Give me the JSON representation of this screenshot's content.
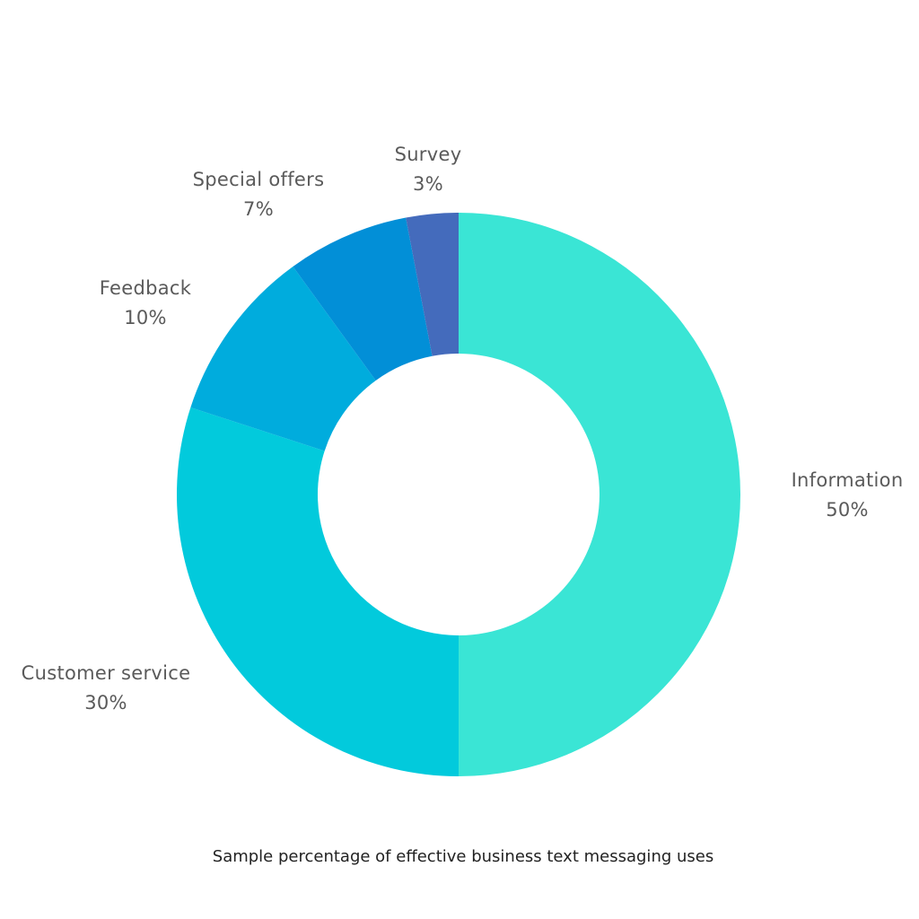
{
  "chart_data": {
    "type": "pie",
    "variant": "donut",
    "title": "Sample percentage of effective  business text messaging uses",
    "categories": [
      "Information",
      "Customer service",
      "Feedback",
      "Special offers",
      "Survey"
    ],
    "values": [
      50,
      30,
      10,
      7,
      3
    ],
    "value_labels": [
      "50%",
      "30%",
      "10%",
      "7%",
      "3%"
    ],
    "colors": [
      "#3ae5d5",
      "#02cadc",
      "#00acdd",
      "#028fd7",
      "#446bbc"
    ],
    "legend": "none (direct labels)",
    "start_angle": "12 o'clock, clockwise"
  },
  "labels": [
    {
      "name": "Information",
      "pct": "50%"
    },
    {
      "name": "Customer service",
      "pct": "30%"
    },
    {
      "name": "Feedback",
      "pct": "10%"
    },
    {
      "name": "Special offers",
      "pct": "7%"
    },
    {
      "name": "Survey",
      "pct": "3%"
    }
  ],
  "caption": "Sample percentage of effective  business text messaging uses"
}
